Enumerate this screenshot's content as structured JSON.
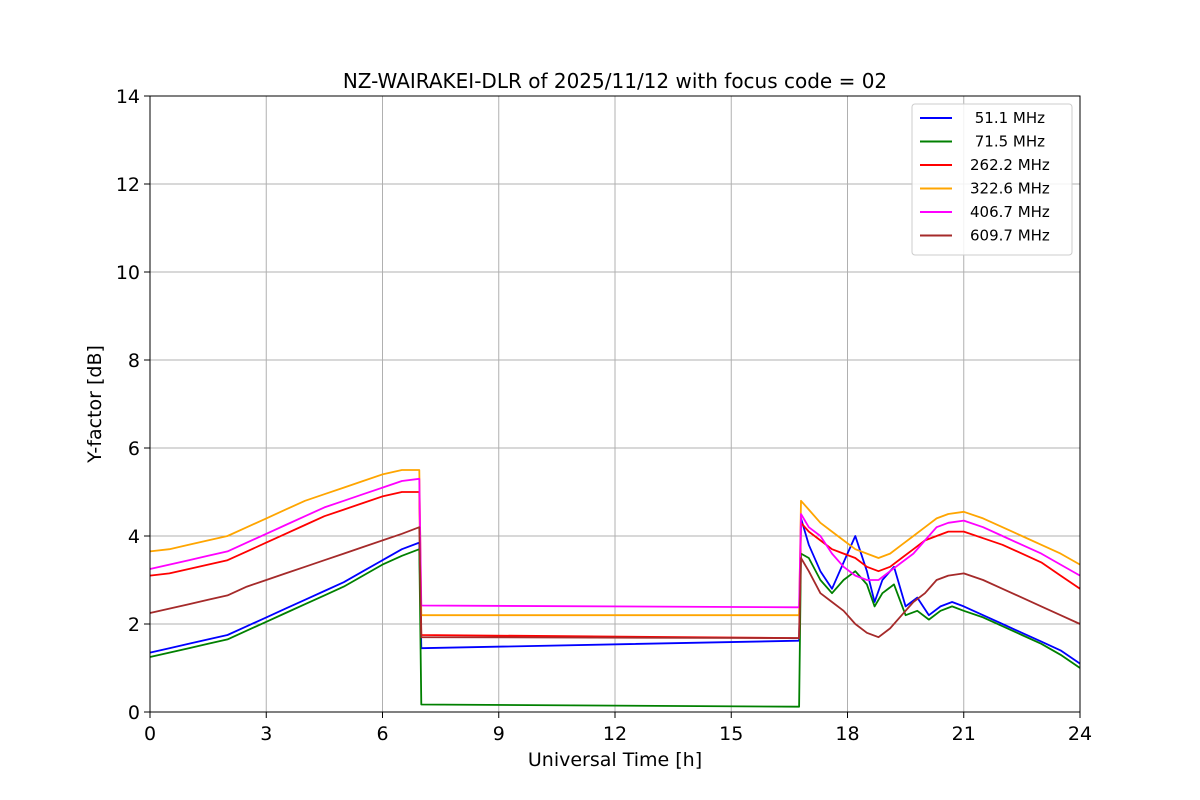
{
  "chart_data": {
    "type": "line",
    "title": "NZ-WAIRAKEI-DLR of 2025/11/12 with focus code = 02",
    "xlabel": "Universal Time [h]",
    "ylabel": "Y-factor [dB]",
    "xlim": [
      0,
      24
    ],
    "ylim": [
      0,
      14
    ],
    "xticks": [
      0,
      3,
      6,
      9,
      12,
      15,
      18,
      21,
      24
    ],
    "yticks": [
      0,
      2,
      4,
      6,
      8,
      10,
      12,
      14
    ],
    "xtick_labels": [
      "0",
      "3",
      "6",
      "9",
      "12",
      "15",
      "18",
      "21",
      "24"
    ],
    "ytick_labels": [
      "0",
      "2",
      "4",
      "6",
      "8",
      "10",
      "12",
      "14"
    ],
    "grid": true,
    "legend_position": "top-right",
    "series": [
      {
        "name": " 51.1 MHz",
        "color": "#0000ff",
        "x": [
          0,
          0.5,
          1,
          1.5,
          2,
          2.5,
          3,
          3.5,
          4,
          4.5,
          5,
          5.5,
          6,
          6.5,
          6.95,
          7.0,
          16.75,
          16.8,
          17.0,
          17.3,
          17.6,
          17.9,
          18.2,
          18.5,
          18.7,
          18.9,
          19.2,
          19.5,
          19.8,
          20.1,
          20.4,
          20.7,
          21.0,
          21.5,
          22.0,
          22.5,
          23.0,
          23.5,
          24.0
        ],
        "values": [
          1.35,
          1.45,
          1.55,
          1.65,
          1.75,
          1.95,
          2.15,
          2.35,
          2.55,
          2.75,
          2.95,
          3.2,
          3.45,
          3.7,
          3.85,
          1.45,
          1.62,
          4.4,
          3.8,
          3.2,
          2.8,
          3.4,
          4.0,
          3.2,
          2.5,
          3.0,
          3.3,
          2.4,
          2.6,
          2.2,
          2.4,
          2.5,
          2.4,
          2.2,
          2.0,
          1.8,
          1.6,
          1.4,
          1.1
        ]
      },
      {
        "name": " 71.5 MHz",
        "color": "#008000",
        "x": [
          0,
          0.5,
          1,
          1.5,
          2,
          2.5,
          3,
          3.5,
          4,
          4.5,
          5,
          5.5,
          6,
          6.5,
          6.95,
          7.0,
          16.75,
          16.8,
          17.0,
          17.3,
          17.6,
          17.9,
          18.2,
          18.5,
          18.7,
          18.9,
          19.2,
          19.5,
          19.8,
          20.1,
          20.4,
          20.7,
          21.0,
          21.5,
          22.0,
          22.5,
          23.0,
          23.5,
          24.0
        ],
        "values": [
          1.25,
          1.35,
          1.45,
          1.55,
          1.65,
          1.85,
          2.05,
          2.25,
          2.45,
          2.65,
          2.85,
          3.1,
          3.35,
          3.55,
          3.7,
          0.17,
          0.12,
          3.6,
          3.5,
          3.0,
          2.7,
          3.0,
          3.2,
          2.9,
          2.4,
          2.7,
          2.9,
          2.2,
          2.3,
          2.1,
          2.3,
          2.4,
          2.3,
          2.15,
          1.95,
          1.75,
          1.55,
          1.3,
          1.0
        ]
      },
      {
        "name": "262.2 MHz",
        "color": "#ff0000",
        "x": [
          0,
          0.5,
          1,
          1.5,
          2,
          2.5,
          3,
          3.5,
          4,
          4.5,
          5,
          5.5,
          6,
          6.5,
          6.95,
          7.0,
          16.75,
          16.8,
          17.0,
          17.3,
          17.6,
          17.9,
          18.2,
          18.5,
          18.8,
          19.1,
          19.4,
          19.7,
          20.0,
          20.3,
          20.6,
          21.0,
          21.5,
          22.0,
          22.5,
          23.0,
          23.5,
          24.0
        ],
        "values": [
          3.1,
          3.15,
          3.25,
          3.35,
          3.45,
          3.65,
          3.85,
          4.05,
          4.25,
          4.45,
          4.6,
          4.75,
          4.9,
          5.0,
          5.0,
          1.75,
          1.68,
          4.3,
          4.1,
          3.9,
          3.7,
          3.6,
          3.5,
          3.3,
          3.2,
          3.3,
          3.5,
          3.7,
          3.9,
          4.0,
          4.1,
          4.1,
          3.95,
          3.8,
          3.6,
          3.4,
          3.1,
          2.8
        ]
      },
      {
        "name": "322.6 MHz",
        "color": "#ffa500",
        "x": [
          0,
          0.5,
          1,
          1.5,
          2,
          2.5,
          3,
          3.5,
          4,
          4.5,
          5,
          5.5,
          6,
          6.5,
          6.95,
          7.0,
          16.75,
          16.8,
          17.0,
          17.3,
          17.6,
          17.9,
          18.2,
          18.5,
          18.8,
          19.1,
          19.4,
          19.7,
          20.0,
          20.3,
          20.6,
          21.0,
          21.5,
          22.0,
          22.5,
          23.0,
          23.5,
          24.0
        ],
        "values": [
          3.65,
          3.7,
          3.8,
          3.9,
          4.0,
          4.2,
          4.4,
          4.6,
          4.8,
          4.95,
          5.1,
          5.25,
          5.4,
          5.5,
          5.5,
          2.2,
          2.2,
          4.8,
          4.6,
          4.3,
          4.1,
          3.9,
          3.7,
          3.6,
          3.5,
          3.6,
          3.8,
          4.0,
          4.2,
          4.4,
          4.5,
          4.55,
          4.4,
          4.2,
          4.0,
          3.8,
          3.6,
          3.35
        ]
      },
      {
        "name": "406.7 MHz",
        "color": "#ff00ff",
        "x": [
          0,
          0.5,
          1,
          1.5,
          2,
          2.5,
          3,
          3.5,
          4,
          4.5,
          5,
          5.5,
          6,
          6.5,
          6.95,
          7.0,
          16.75,
          16.8,
          17.0,
          17.3,
          17.6,
          17.9,
          18.2,
          18.5,
          18.8,
          19.1,
          19.4,
          19.7,
          20.0,
          20.3,
          20.6,
          21.0,
          21.5,
          22.0,
          22.5,
          23.0,
          23.5,
          24.0
        ],
        "values": [
          3.25,
          3.35,
          3.45,
          3.55,
          3.65,
          3.85,
          4.05,
          4.25,
          4.45,
          4.65,
          4.8,
          4.95,
          5.1,
          5.25,
          5.3,
          2.42,
          2.38,
          4.5,
          4.2,
          4.0,
          3.6,
          3.3,
          3.1,
          3.0,
          3.0,
          3.2,
          3.4,
          3.6,
          3.9,
          4.2,
          4.3,
          4.35,
          4.2,
          4.0,
          3.8,
          3.6,
          3.35,
          3.1
        ]
      },
      {
        "name": "609.7 MHz",
        "color": "#a52a2a",
        "x": [
          0,
          0.5,
          1,
          1.5,
          2,
          2.5,
          3,
          3.5,
          4,
          4.5,
          5,
          5.5,
          6,
          6.5,
          6.95,
          7.0,
          16.75,
          16.8,
          17.0,
          17.3,
          17.6,
          17.9,
          18.2,
          18.5,
          18.8,
          19.1,
          19.4,
          19.7,
          20.0,
          20.3,
          20.6,
          21.0,
          21.5,
          22.0,
          22.5,
          23.0,
          23.5,
          24.0
        ],
        "values": [
          2.25,
          2.35,
          2.45,
          2.55,
          2.65,
          2.85,
          3.0,
          3.15,
          3.3,
          3.45,
          3.6,
          3.75,
          3.9,
          4.05,
          4.2,
          1.7,
          1.68,
          3.5,
          3.2,
          2.7,
          2.5,
          2.3,
          2.0,
          1.8,
          1.7,
          1.9,
          2.2,
          2.5,
          2.7,
          3.0,
          3.1,
          3.15,
          3.0,
          2.8,
          2.6,
          2.4,
          2.2,
          2.0
        ]
      }
    ]
  }
}
